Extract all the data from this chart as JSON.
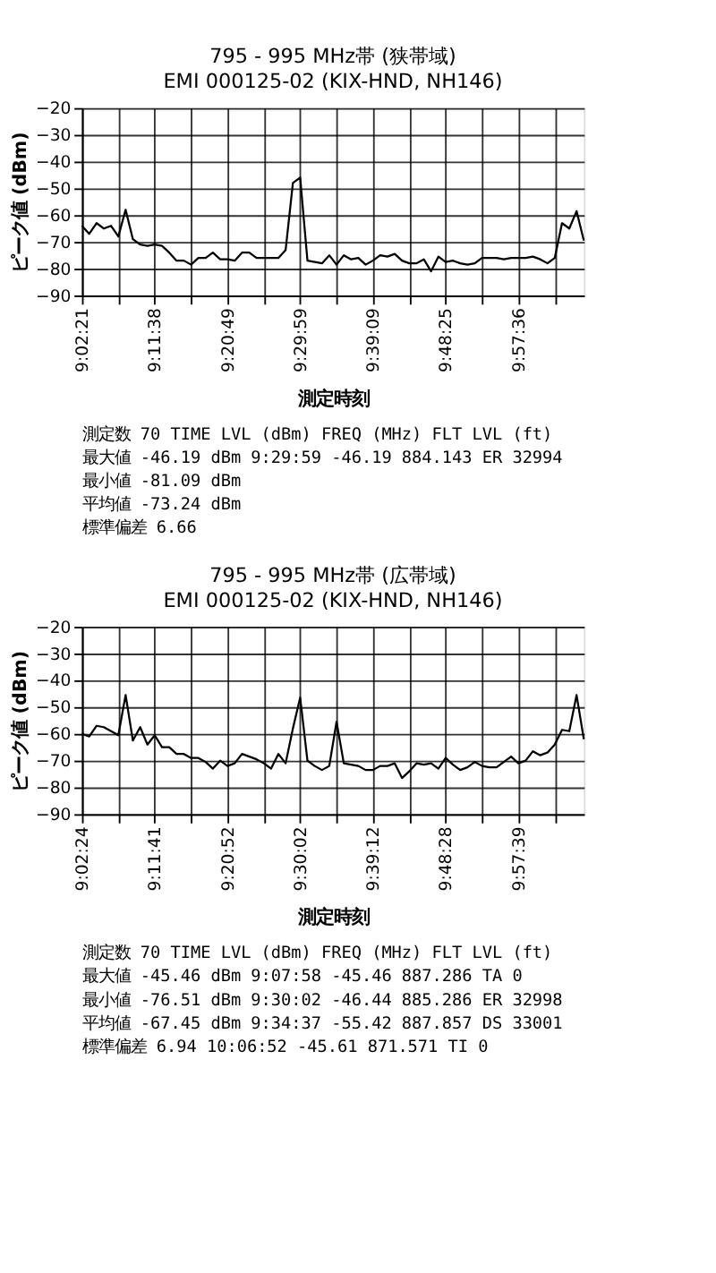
{
  "chart_data": [
    {
      "type": "line",
      "title": "795 - 995 MHz帯 (狭帯域)",
      "subtitle": "EMI 000125-02 (KIX-HND, NH146)",
      "xlabel": "測定時刻",
      "ylabel": "ピーク値 (dBm)",
      "categories": [
        "9:02:21",
        null,
        null,
        null,
        null,
        null,
        null,
        null,
        null,
        null,
        "9:11:38",
        null,
        null,
        null,
        null,
        null,
        null,
        null,
        null,
        null,
        "9:20:49",
        null,
        null,
        null,
        null,
        null,
        null,
        null,
        null,
        null,
        "9:29:59",
        null,
        null,
        null,
        null,
        null,
        null,
        null,
        null,
        null,
        "9:39:09",
        null,
        null,
        null,
        null,
        null,
        null,
        null,
        null,
        null,
        "9:48:25",
        null,
        null,
        null,
        null,
        null,
        null,
        null,
        null,
        null,
        "9:57:36",
        null,
        null,
        null,
        null,
        null,
        null,
        null,
        null,
        null
      ],
      "series": [
        {
          "color": "#000000",
          "values": [
            -64,
            -67,
            -63,
            -65,
            -64,
            -68,
            -58,
            -69,
            -71,
            -71.5,
            -71,
            -71.5,
            -74,
            -77,
            -77,
            -78.5,
            -76,
            -76,
            -74,
            -76.5,
            -76.5,
            -77,
            -74,
            -74,
            -76,
            -76,
            -76,
            -76,
            -73,
            -48,
            -46,
            -77,
            -77.5,
            -78,
            -75,
            -78.5,
            -75,
            -76.5,
            -76,
            -78.5,
            -77,
            -75,
            -75.5,
            -74.5,
            -77,
            -78,
            -78,
            -76.5,
            -81,
            -75.5,
            -77.5,
            -77,
            -78,
            -78.5,
            -78,
            -76,
            -76,
            -76,
            -76.5,
            -76,
            -76,
            -76,
            -75.5,
            -76.5,
            -78,
            -76,
            -63,
            -65,
            -58.5,
            -69.5
          ]
        }
      ],
      "ylim": [
        -90,
        -20
      ],
      "yticks": [
        -90,
        -80,
        -70,
        -60,
        -50,
        -40,
        -30,
        -20
      ],
      "grid": true,
      "annotations": [
        "測定数    70          TIME    LVL (dBm) FREQ (MHz) FLT LVL (ft)",
        "最大値  -46.19 dBm  9:29:59   -46.19    884.143    ER 32994",
        "最小値  -81.09 dBm",
        "平均値  -73.24 dBm",
        "標準偏差  6.66"
      ]
    },
    {
      "type": "line",
      "title": "795 - 995 MHz帯 (広帯域)",
      "subtitle": "EMI 000125-02 (KIX-HND, NH146)",
      "xlabel": "測定時刻",
      "ylabel": "ピーク値 (dBm)",
      "categories": [
        "9:02:24",
        null,
        null,
        null,
        null,
        null,
        null,
        null,
        null,
        null,
        "9:11:41",
        null,
        null,
        null,
        null,
        null,
        null,
        null,
        null,
        null,
        "9:20:52",
        null,
        null,
        null,
        null,
        null,
        null,
        null,
        null,
        null,
        "9:30:02",
        null,
        null,
        null,
        null,
        null,
        null,
        null,
        null,
        null,
        "9:39:12",
        null,
        null,
        null,
        null,
        null,
        null,
        null,
        null,
        null,
        "9:48:28",
        null,
        null,
        null,
        null,
        null,
        null,
        null,
        null,
        null,
        "9:57:39",
        null,
        null,
        null,
        null,
        null,
        null,
        null,
        null,
        null
      ],
      "series": [
        {
          "color": "#000000",
          "values": [
            -60,
            -61,
            -57,
            -57.5,
            -59,
            -60.5,
            -45.5,
            -62.5,
            -57.5,
            -64,
            -60.5,
            -65,
            -65,
            -67.5,
            -67.5,
            -69,
            -69,
            -70.5,
            -73,
            -70,
            -72,
            -71,
            -67.5,
            -68.5,
            -69.5,
            -71,
            -73,
            -67.5,
            -71,
            -58,
            -46.5,
            -70,
            -72,
            -73.5,
            -72,
            -55.5,
            -71,
            -71.5,
            -72,
            -73.5,
            -73.5,
            -72,
            -72,
            -71,
            -76.5,
            -74,
            -71,
            -71.5,
            -71,
            -73,
            -69,
            -71.5,
            -73.5,
            -72.5,
            -70.5,
            -72,
            -72.5,
            -72.5,
            -70.5,
            -68.5,
            -71,
            -70,
            -66.5,
            -68,
            -67,
            -64,
            -58.5,
            -59,
            -45.5,
            -62
          ]
        }
      ],
      "ylim": [
        -90,
        -20
      ],
      "yticks": [
        -90,
        -80,
        -70,
        -60,
        -50,
        -40,
        -30,
        -20
      ],
      "grid": true,
      "annotations": [
        "測定数    70          TIME    LVL (dBm) FREQ (MHz) FLT LVL (ft)",
        "最大値  -45.46 dBm  9:07:58   -45.46    887.286    TA  0",
        "最小値  -76.51 dBm  9:30:02   -46.44    885.286    ER 32998",
        "平均値  -67.45 dBm  9:34:37   -55.42    887.857    DS 33001",
        "標準偏差  6.94      10:06:52  -45.61    871.571    TI  0"
      ]
    }
  ]
}
